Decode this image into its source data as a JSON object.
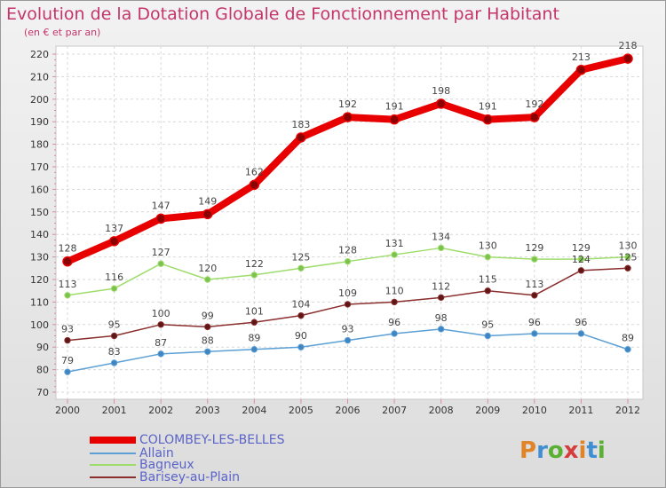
{
  "title": "Evolution de la Dotation Globale de Fonctionnement par Habitant",
  "subtitle": "(en € et par an)",
  "logo": {
    "text": "Proxiti",
    "colors": [
      "#e0842a",
      "#3f8fd2",
      "#5ab030",
      "#d63c3c",
      "#e0842a",
      "#3f8fd2",
      "#5ab030"
    ]
  },
  "chart_data": {
    "type": "line",
    "title": "Evolution de la Dotation Globale de Fonctionnement par Habitant",
    "subtitle": "(en € et par an)",
    "xlabel": "",
    "ylabel": "",
    "x": [
      "2000",
      "2001",
      "2002",
      "2003",
      "2004",
      "2005",
      "2006",
      "2007",
      "2008",
      "2009",
      "2010",
      "2011",
      "2012"
    ],
    "ylim": [
      70,
      220
    ],
    "yticks": [
      70,
      80,
      90,
      100,
      110,
      120,
      130,
      140,
      150,
      160,
      170,
      180,
      190,
      200,
      210,
      220
    ],
    "grid": true,
    "legend_position": "bottom-left",
    "series": [
      {
        "name": "COLOMBEY-LES-BELLES",
        "color": "#e80000",
        "marker_color": "#8b0000",
        "emphasis": "thick",
        "values": [
          128,
          137,
          147,
          149,
          162,
          183,
          192,
          191,
          198,
          191,
          192,
          213,
          218
        ]
      },
      {
        "name": "Allain",
        "color": "#5b9fd4",
        "marker_color": "#3f85c2",
        "emphasis": "normal",
        "values": [
          79,
          83,
          87,
          88,
          89,
          90,
          93,
          96,
          98,
          95,
          96,
          96,
          89
        ]
      },
      {
        "name": "Bagneux",
        "color": "#9edc6c",
        "marker_color": "#7cc24e",
        "emphasis": "normal",
        "values": [
          113,
          116,
          127,
          120,
          122,
          125,
          128,
          131,
          134,
          130,
          129,
          129,
          130
        ]
      },
      {
        "name": "Barisey-au-Plain",
        "color": "#8b2e2e",
        "marker_color": "#5e1616",
        "emphasis": "normal",
        "values": [
          93,
          95,
          100,
          99,
          101,
          104,
          109,
          110,
          112,
          115,
          113,
          124,
          125
        ]
      }
    ]
  }
}
